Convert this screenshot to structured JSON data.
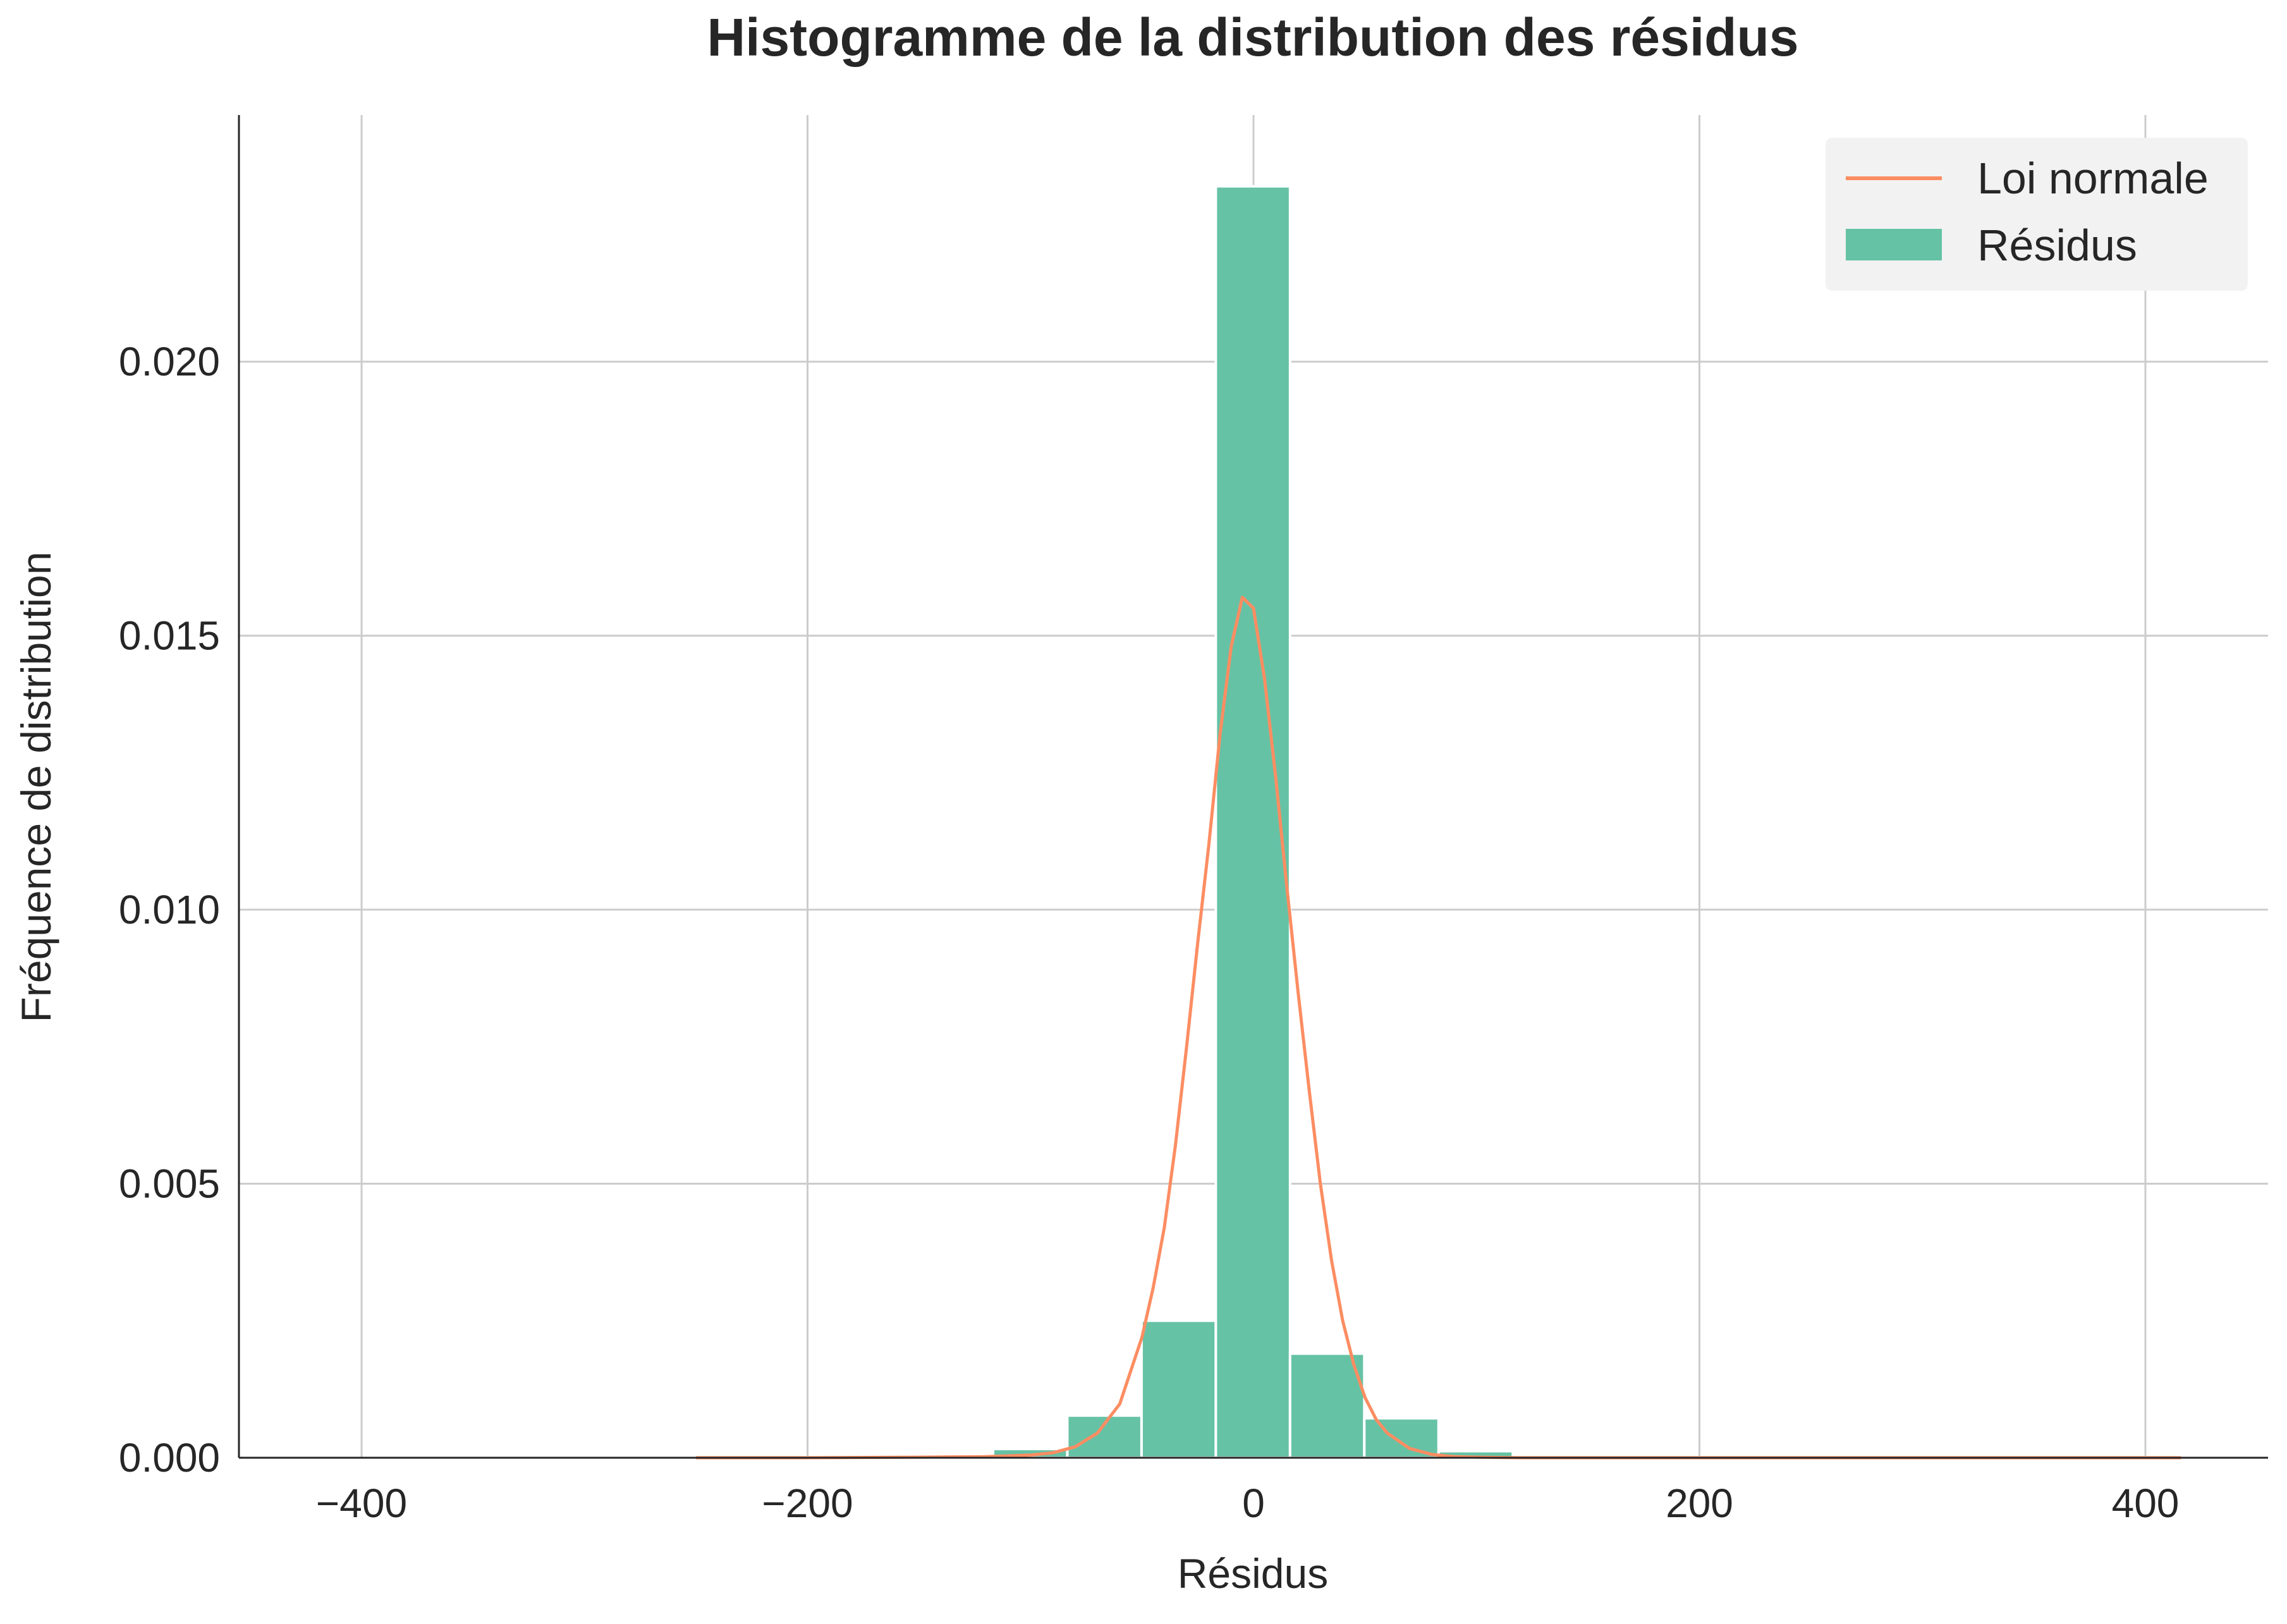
{
  "chart_data": {
    "type": "bar",
    "title": "Histogramme de la distribution des résidus",
    "xlabel": "Résidus",
    "ylabel": "Fréquence de distribution",
    "xlim": [
      -455,
      455
    ],
    "ylim": [
      0,
      0.0245
    ],
    "xticks": [
      -400,
      -200,
      0,
      200,
      400
    ],
    "xtick_labels": [
      "−400",
      "−200",
      "0",
      "200",
      "400"
    ],
    "yticks": [
      0,
      0.005,
      0.01,
      0.015,
      0.02
    ],
    "ytick_labels": [
      "0.000",
      "0.005",
      "0.010",
      "0.015",
      "0.020"
    ],
    "grid": true,
    "legend_position": "top-right",
    "bin_edges": [
      -250.0,
      -216.7,
      -183.4,
      -150.1,
      -116.8,
      -83.5,
      -50.2,
      -16.9,
      16.4,
      49.7,
      83.0,
      116.3,
      149.6,
      182.9,
      216.2,
      249.5,
      282.8,
      316.1,
      349.4,
      382.7,
      416.0
    ],
    "series": [
      {
        "name": "Résidus",
        "kind": "histogram",
        "color": "#66c2a5",
        "values": [
          1e-05,
          1e-05,
          1e-05,
          2e-05,
          0.00016,
          0.00077,
          0.0025,
          0.0232,
          0.0019,
          0.00072,
          0.00012,
          2e-05,
          1e-05,
          1e-05,
          1e-05,
          1e-05,
          1e-05,
          1e-05,
          1e-05,
          1e-05
        ]
      },
      {
        "name": "Loi normale",
        "kind": "line",
        "color": "#fc8d62",
        "x": [
          -250,
          -200,
          -150,
          -120,
          -100,
          -90,
          -80,
          -70,
          -60,
          -50,
          -45,
          -40,
          -35,
          -30,
          -25,
          -20,
          -15,
          -10,
          -5,
          0,
          5,
          10,
          15,
          20,
          25,
          30,
          35,
          40,
          45,
          50,
          55,
          60,
          70,
          80,
          90,
          100,
          120,
          150,
          200,
          300,
          416
        ],
        "y": [
          0,
          0,
          1e-05,
          2e-05,
          5e-05,
          9e-05,
          0.0002,
          0.00045,
          0.00098,
          0.0022,
          0.0031,
          0.0042,
          0.0057,
          0.0075,
          0.0094,
          0.0112,
          0.0132,
          0.0148,
          0.0157,
          0.0155,
          0.0142,
          0.0124,
          0.0104,
          0.0085,
          0.0067,
          0.005,
          0.0036,
          0.0025,
          0.0017,
          0.0011,
          0.0007,
          0.00045,
          0.00017,
          6e-05,
          2e-05,
          1e-05,
          0,
          0,
          0,
          0,
          0
        ]
      }
    ]
  },
  "legend": {
    "items": [
      {
        "label": "Loi normale",
        "color": "#fc8d62",
        "kind": "line"
      },
      {
        "label": "Résidus",
        "color": "#66c2a5",
        "kind": "patch"
      }
    ]
  }
}
